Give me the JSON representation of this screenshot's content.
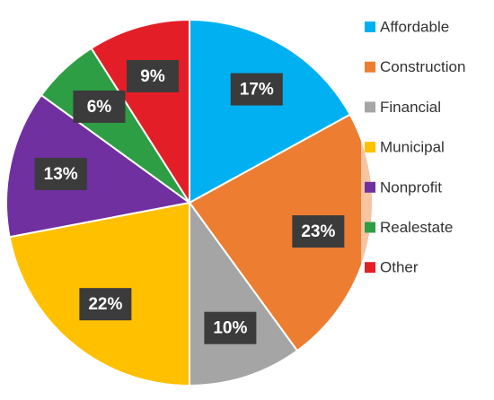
{
  "chart_data": {
    "type": "pie",
    "categories": [
      "Affordable",
      "Construction",
      "Financial",
      "Municipal",
      "Nonprofit",
      "Realestate",
      "Other"
    ],
    "values": [
      17,
      23,
      10,
      22,
      13,
      6,
      9
    ],
    "value_labels": [
      "17%",
      "23%",
      "10%",
      "22%",
      "13%",
      "6%",
      "9%"
    ],
    "colors": [
      "#00B0F0",
      "#ED7D31",
      "#A5A5A5",
      "#FFC000",
      "#7030A0",
      "#2E9E44",
      "#E41E26"
    ],
    "legend": "right"
  }
}
